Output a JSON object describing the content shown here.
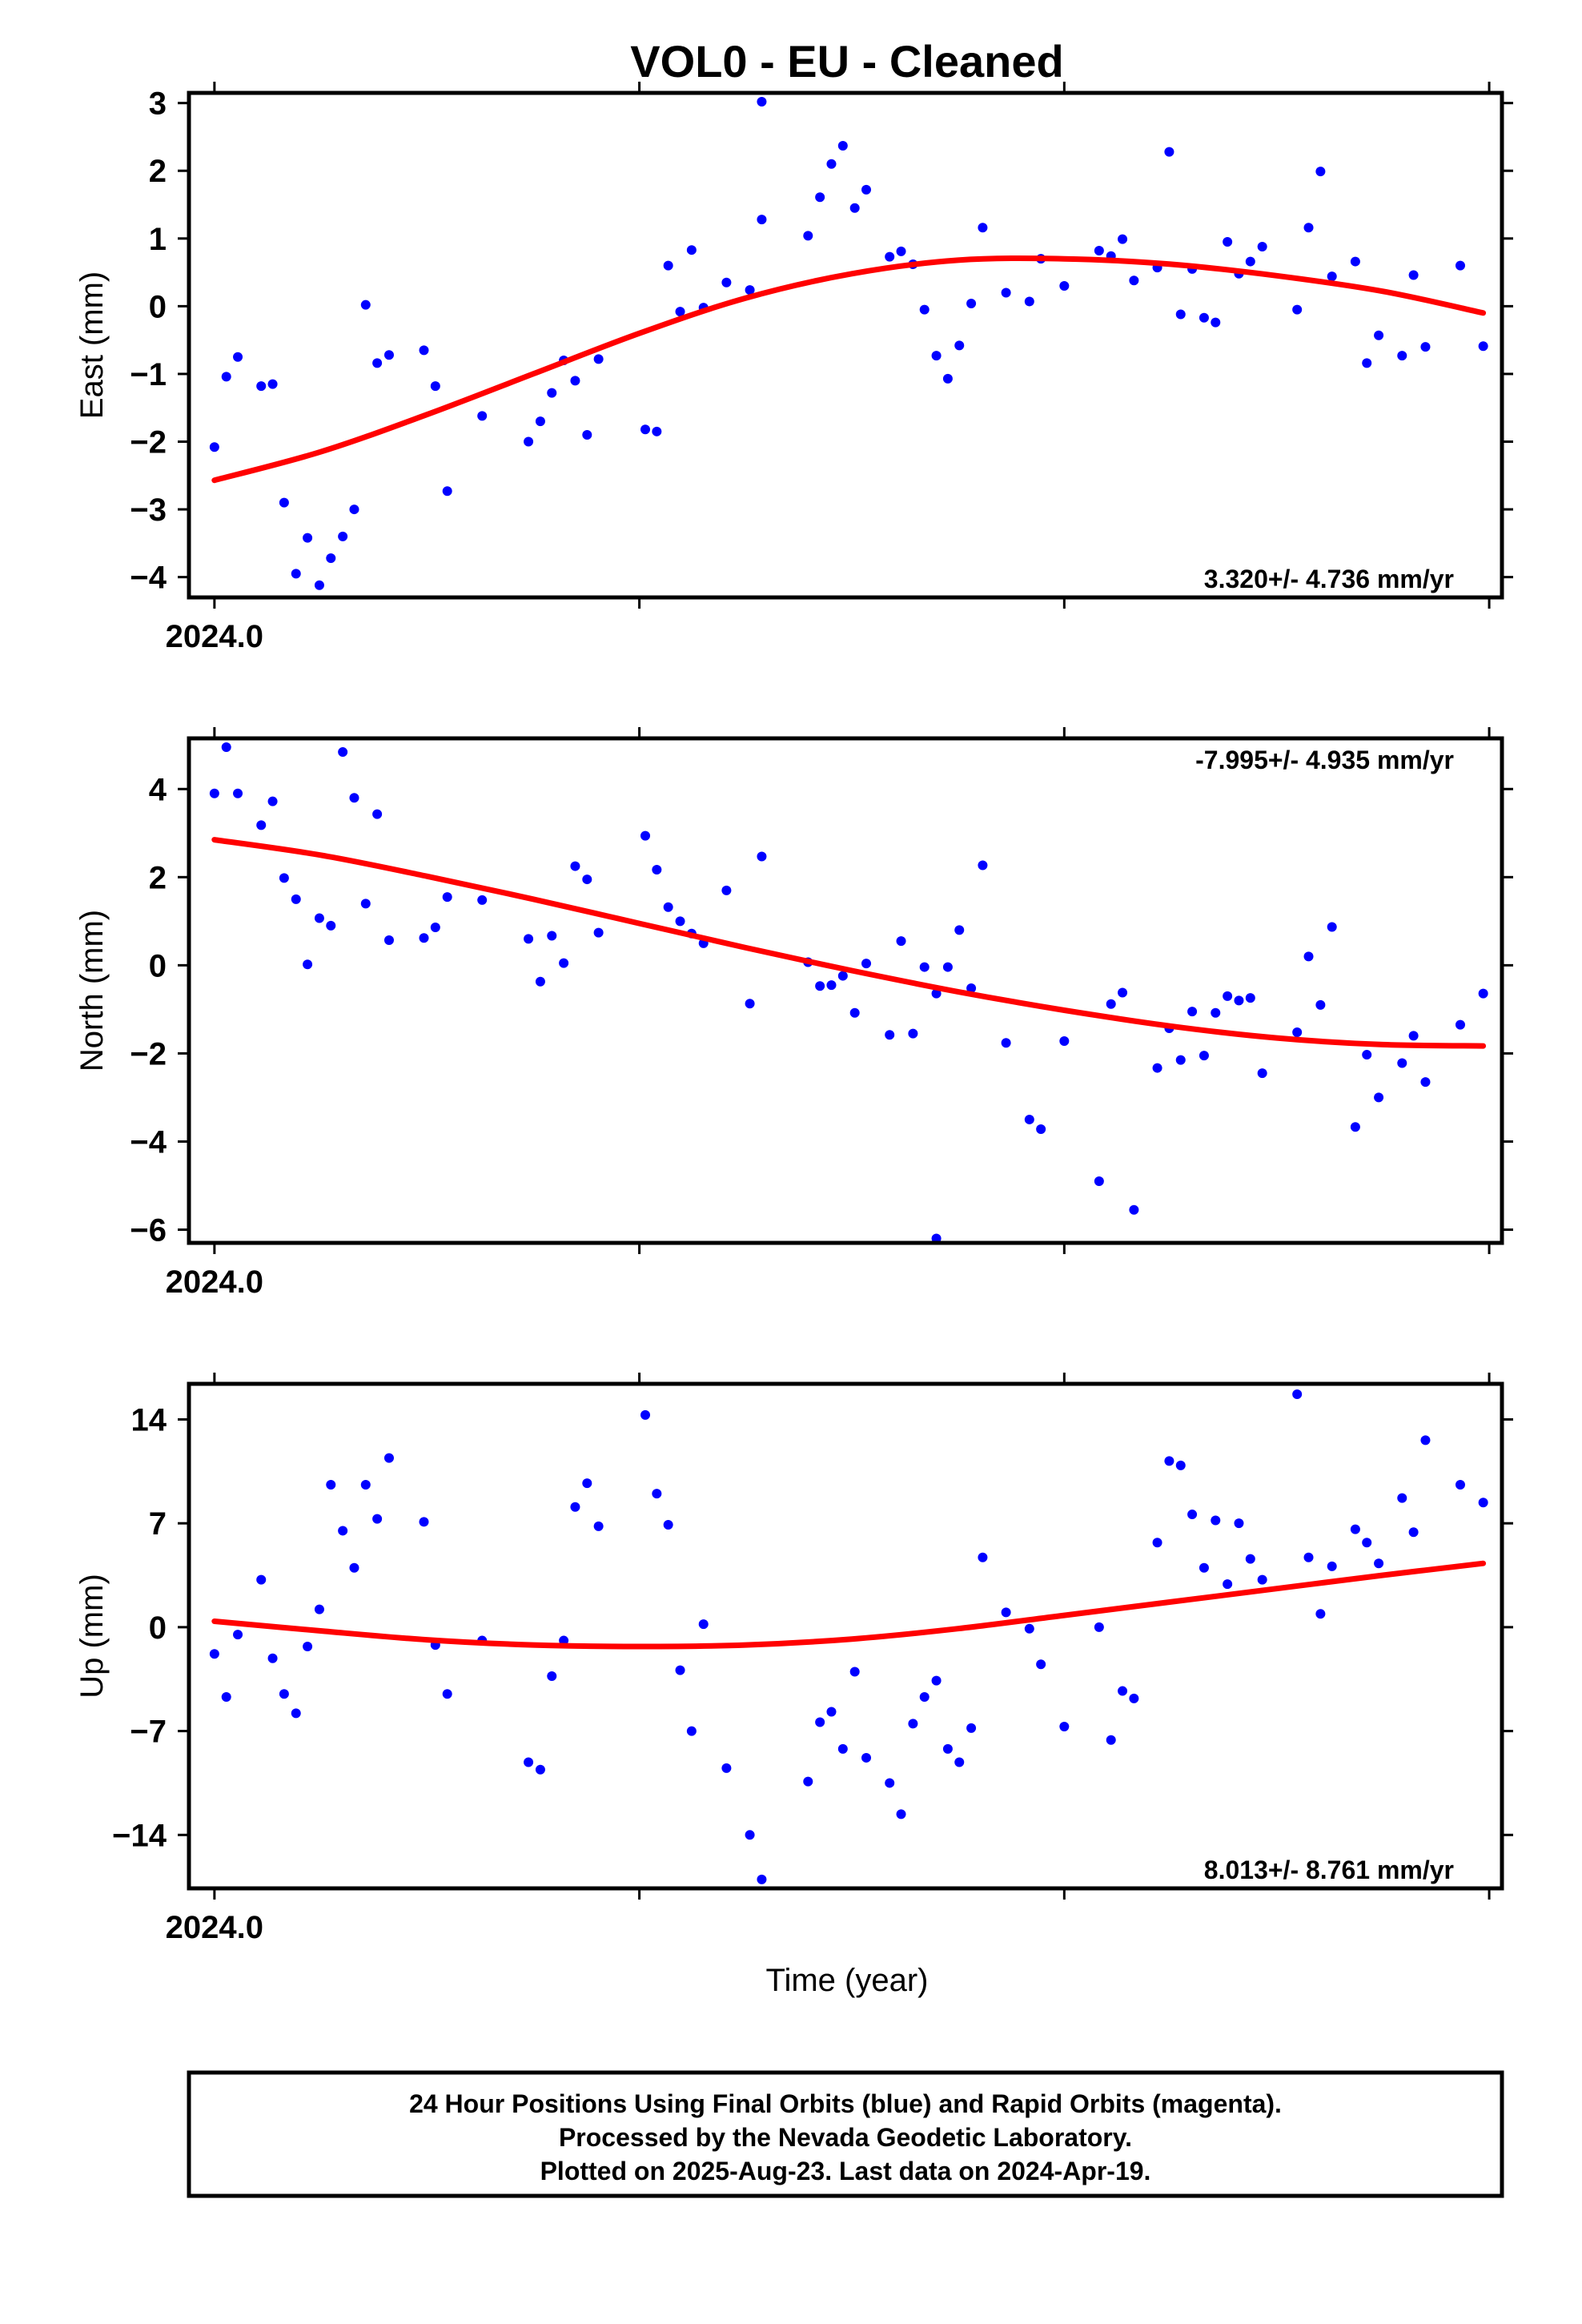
{
  "chart_data": [
    {
      "type": "scatter",
      "title": "VOL0  - EU - Cleaned",
      "ylabel": "East (mm)",
      "xtick_label": "2024.0",
      "rate": "3.320+/- 4.736 mm/yr",
      "ylim": [
        -4.3,
        3.15
      ],
      "yticks": [
        3,
        2,
        1,
        0,
        -1,
        -2,
        -3,
        -4
      ],
      "ytick_labels": [
        "3",
        "2",
        "1",
        "0",
        "−1",
        "−2",
        "−3",
        "−4"
      ],
      "xlim": [
        -0.06,
        3.03
      ],
      "xticks": [
        0,
        1,
        2,
        3
      ],
      "series": [
        {
          "color": "#0000ff",
          "x": [
            0.0,
            0.028,
            0.055,
            0.11,
            0.137,
            0.164,
            0.192,
            0.219,
            0.247,
            0.274,
            0.302,
            0.329,
            0.356,
            0.383,
            0.411,
            0.493,
            0.52,
            0.548,
            0.63,
            0.739,
            0.767,
            0.794,
            0.822,
            0.849,
            0.877,
            0.904,
            1.014,
            1.041,
            1.068,
            1.096,
            1.123,
            1.151,
            1.205,
            1.26,
            1.288,
            1.397,
            1.425,
            1.452,
            1.479,
            1.507,
            1.534,
            1.589,
            1.616,
            1.644,
            1.671,
            1.699,
            1.726,
            1.753,
            1.781,
            1.808,
            1.863,
            1.918,
            1.945,
            2.0,
            2.082,
            2.11,
            2.137,
            2.164,
            2.219,
            2.247,
            2.274,
            2.301,
            2.329,
            2.356,
            2.384,
            2.411,
            2.438,
            2.466,
            2.548,
            2.575,
            2.603,
            2.63,
            2.685,
            2.712,
            2.74,
            2.795,
            2.822,
            2.85,
            2.932,
            2.986
          ],
          "y": [
            -2.08,
            -1.04,
            -0.75,
            -1.18,
            -1.15,
            -2.9,
            -3.95,
            -3.42,
            -4.12,
            -3.72,
            -3.4,
            -3.0,
            0.02,
            -0.84,
            -0.72,
            -0.65,
            -1.18,
            -2.73,
            -1.62,
            -2.0,
            -1.7,
            -1.28,
            -0.8,
            -1.1,
            -1.9,
            -0.78,
            -1.82,
            -1.85,
            0.6,
            -0.08,
            0.83,
            -0.02,
            0.35,
            0.24,
            1.28,
            1.04,
            1.61,
            2.1,
            2.37,
            1.45,
            1.72,
            0.73,
            0.81,
            0.62,
            -0.05,
            -0.73,
            -1.07,
            -0.58,
            0.04,
            1.16,
            0.2,
            0.07,
            0.7,
            0.3,
            0.82,
            0.74,
            0.99,
            0.38,
            0.57,
            2.28,
            -0.12,
            0.55,
            -0.17,
            -0.24,
            0.95,
            0.48,
            0.66,
            0.88,
            -0.05,
            1.16,
            1.99,
            0.44,
            0.66,
            -0.84,
            -0.43,
            -0.73,
            0.46,
            -0.6,
            0.6,
            -0.59
          ]
        },
        {
          "color": "#0000ff",
          "x": [
            1.288
          ],
          "y": [
            3.02
          ]
        },
        {
          "color": "#ff0000",
          "x": [
            0,
            0.25,
            0.5,
            0.75,
            1.0,
            1.25,
            1.5,
            1.75,
            2.0,
            2.25,
            2.5,
            2.75,
            2.986
          ],
          "y": [
            -2.57,
            -2.15,
            -1.6,
            -1.0,
            -0.4,
            0.12,
            0.48,
            0.68,
            0.7,
            0.62,
            0.45,
            0.22,
            -0.1
          ]
        }
      ]
    },
    {
      "type": "scatter",
      "ylabel": "North (mm)",
      "xtick_label": "2024.0",
      "rate": "-7.995+/- 4.935 mm/yr",
      "ylim": [
        -6.3,
        5.15
      ],
      "yticks": [
        4,
        2,
        0,
        -2,
        -4,
        -6
      ],
      "ytick_labels": [
        "4",
        "2",
        "0",
        "−2",
        "−4",
        "−6"
      ],
      "xlim": [
        -0.06,
        3.03
      ],
      "xticks": [
        0,
        1,
        2,
        3
      ],
      "series": [
        {
          "color": "#0000ff",
          "x": [
            0.0,
            0.028,
            0.055,
            0.11,
            0.137,
            0.164,
            0.192,
            0.219,
            0.247,
            0.274,
            0.302,
            0.329,
            0.356,
            0.383,
            0.411,
            0.493,
            0.52,
            0.548,
            0.63,
            0.739,
            0.767,
            0.794,
            0.822,
            0.849,
            0.877,
            0.904,
            1.014,
            1.041,
            1.068,
            1.096,
            1.123,
            1.151,
            1.205,
            1.26,
            1.288,
            1.397,
            1.425,
            1.452,
            1.479,
            1.507,
            1.534,
            1.589,
            1.616,
            1.644,
            1.671,
            1.699,
            1.726,
            1.753,
            1.781,
            1.808,
            1.863,
            1.918,
            1.945,
            2.0,
            2.082,
            2.11,
            2.137,
            2.164,
            2.219,
            2.247,
            2.274,
            2.301,
            2.329,
            2.356,
            2.384,
            2.411,
            2.438,
            2.466,
            2.548,
            2.575,
            2.603,
            2.63,
            2.685,
            2.712,
            2.74,
            2.795,
            2.822,
            2.85,
            2.932,
            2.986
          ],
          "y": [
            3.9,
            4.95,
            3.9,
            3.18,
            3.72,
            1.98,
            1.5,
            0.02,
            1.07,
            0.9,
            4.84,
            3.8,
            1.4,
            3.43,
            0.57,
            0.62,
            0.86,
            1.55,
            1.48,
            0.6,
            -0.37,
            0.67,
            0.05,
            2.25,
            1.95,
            0.74,
            2.94,
            2.17,
            1.32,
            1.0,
            0.72,
            0.5,
            1.7,
            -0.87,
            2.47,
            0.07,
            -0.47,
            -0.45,
            -0.24,
            -1.08,
            0.04,
            -1.58,
            0.55,
            -1.55,
            -0.04,
            -0.64,
            -0.04,
            0.8,
            -0.52,
            2.27,
            -1.76,
            -3.5,
            -3.72,
            -1.72,
            -4.9,
            -0.88,
            -0.62,
            -5.55,
            -2.33,
            -1.43,
            -2.15,
            -1.05,
            -2.05,
            -1.08,
            -0.7,
            -0.8,
            -0.74,
            -2.45,
            -1.52,
            0.2,
            -0.9,
            0.87,
            -3.67,
            -2.03,
            -3.0,
            -2.22,
            -1.6,
            -2.65,
            -1.35,
            -0.64
          ]
        },
        {
          "color": "#0000ff",
          "x": [
            1.699
          ],
          "y": [
            -6.2
          ]
        },
        {
          "color": "#ff0000",
          "x": [
            0,
            0.25,
            0.5,
            0.75,
            1.0,
            1.25,
            1.5,
            1.75,
            2.0,
            2.25,
            2.5,
            2.75,
            2.986
          ],
          "y": [
            2.85,
            2.5,
            2.02,
            1.5,
            0.95,
            0.4,
            -0.12,
            -0.6,
            -1.02,
            -1.38,
            -1.65,
            -1.8,
            -1.83
          ]
        }
      ]
    },
    {
      "type": "scatter",
      "ylabel": "Up (mm)",
      "xlabel": "Time (year)",
      "xtick_label": "2024.0",
      "rate": "8.013+/- 8.761 mm/yr",
      "ylim": [
        -17.6,
        16.4
      ],
      "yticks": [
        14,
        7,
        0,
        -7,
        -14
      ],
      "ytick_labels": [
        "14",
        "7",
        "0",
        "−7",
        "−14"
      ],
      "xlim": [
        -0.06,
        3.03
      ],
      "xticks": [
        0,
        1,
        2,
        3
      ],
      "series": [
        {
          "color": "#0000ff",
          "x": [
            0.0,
            0.028,
            0.055,
            0.11,
            0.137,
            0.164,
            0.192,
            0.219,
            0.247,
            0.274,
            0.302,
            0.329,
            0.356,
            0.383,
            0.411,
            0.493,
            0.52,
            0.548,
            0.63,
            0.739,
            0.767,
            0.794,
            0.822,
            0.849,
            0.877,
            0.904,
            1.014,
            1.041,
            1.068,
            1.096,
            1.123,
            1.151,
            1.205,
            1.26,
            1.288,
            1.397,
            1.425,
            1.452,
            1.479,
            1.507,
            1.534,
            1.589,
            1.616,
            1.644,
            1.671,
            1.699,
            1.726,
            1.753,
            1.781,
            1.808,
            1.863,
            1.918,
            1.945,
            2.0,
            2.082,
            2.11,
            2.137,
            2.164,
            2.219,
            2.247,
            2.274,
            2.301,
            2.329,
            2.356,
            2.384,
            2.411,
            2.438,
            2.466,
            2.548,
            2.575,
            2.603,
            2.63,
            2.685,
            2.712,
            2.74,
            2.795,
            2.822,
            2.85,
            2.932,
            2.986
          ],
          "y": [
            -1.8,
            -4.7,
            -0.5,
            3.2,
            -2.1,
            -4.5,
            -5.8,
            -1.3,
            1.2,
            9.6,
            6.5,
            4.0,
            9.6,
            7.3,
            11.4,
            7.1,
            -1.2,
            -4.5,
            -0.9,
            -9.1,
            -9.6,
            -3.3,
            -0.9,
            8.1,
            9.7,
            6.8,
            14.3,
            9.0,
            6.9,
            -2.9,
            -7.0,
            0.2,
            -9.5,
            -14.0,
            -17.0,
            -10.4,
            -6.4,
            -5.7,
            -8.2,
            -3.0,
            -8.8,
            -10.5,
            -12.6,
            -6.5,
            -4.7,
            -3.6,
            -8.2,
            -9.1,
            -6.8,
            4.7,
            1.0,
            -0.1,
            -2.5,
            -6.7,
            0.0,
            -7.6,
            -4.3,
            -4.8,
            5.7,
            11.2,
            10.9,
            7.6,
            4.0,
            7.2,
            2.9,
            7.0,
            4.6,
            3.2,
            15.7,
            4.7,
            0.9,
            4.1,
            6.6,
            5.7,
            4.3,
            8.7,
            6.4,
            12.6,
            9.6,
            8.4
          ]
        },
        {
          "color": "#ff0000",
          "x": [
            0,
            0.25,
            0.5,
            0.75,
            1.0,
            1.25,
            1.5,
            1.75,
            2.0,
            2.25,
            2.5,
            2.75,
            2.986
          ],
          "y": [
            0.4,
            -0.25,
            -0.85,
            -1.2,
            -1.3,
            -1.2,
            -0.8,
            -0.1,
            0.8,
            1.7,
            2.6,
            3.5,
            4.3
          ]
        }
      ]
    }
  ],
  "caption": {
    "line1": "24 Hour Positions Using Final Orbits (blue) and Rapid Orbits (magenta).",
    "line2": "Processed by the Nevada Geodetic Laboratory.",
    "line3": "Plotted on 2025-Aug-23. Last data on 2024-Apr-19."
  }
}
